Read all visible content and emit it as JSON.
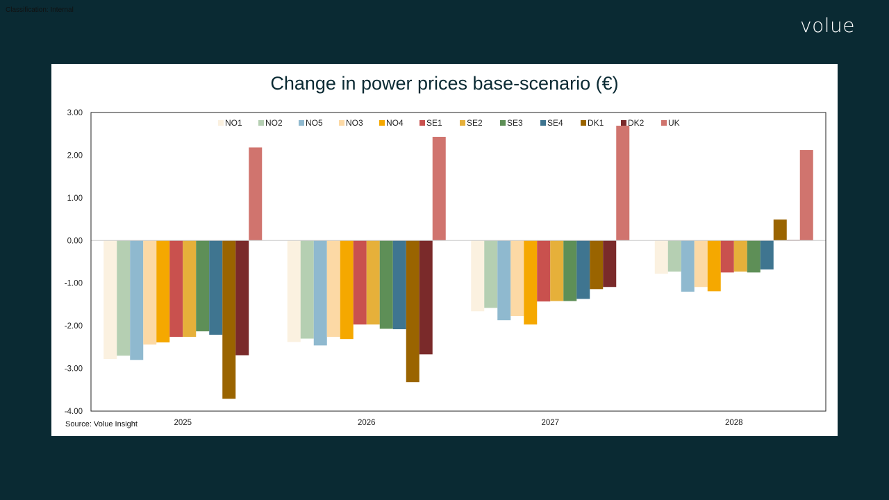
{
  "classification": "Classification: Internal",
  "logo": "volue",
  "chart_data": {
    "type": "bar",
    "title": "Change in power prices base-scenario (€)",
    "source": "Source: Volue Insight",
    "xlabel": "",
    "ylabel": "",
    "ylim": [
      -4,
      3
    ],
    "yticks": [
      3,
      2,
      1,
      0,
      -1,
      -2,
      -3,
      -4
    ],
    "ytick_labels": [
      "3.00",
      "2.00",
      "1.00",
      "0.00",
      "-1.00",
      "-2.00",
      "-3.00",
      "-4.00"
    ],
    "legend_position": "top",
    "categories": [
      "2025",
      "2026",
      "2027",
      "2028"
    ],
    "series": [
      {
        "name": "NO1",
        "color": "#fbf1e0",
        "values": [
          -2.78,
          -2.38,
          -1.66,
          -0.78
        ]
      },
      {
        "name": "NO2",
        "color": "#b5cfb2",
        "values": [
          -2.7,
          -2.3,
          -1.58,
          -0.73
        ]
      },
      {
        "name": "NO5",
        "color": "#8fb9cf",
        "values": [
          -2.8,
          -2.46,
          -1.87,
          -1.2
        ]
      },
      {
        "name": "NO3",
        "color": "#fcd9a5",
        "values": [
          -2.44,
          -2.26,
          -1.77,
          -1.09
        ]
      },
      {
        "name": "NO4",
        "color": "#f5a800",
        "values": [
          -2.39,
          -2.31,
          -1.97,
          -1.19
        ]
      },
      {
        "name": "SE1",
        "color": "#c9514e",
        "values": [
          -2.26,
          -1.97,
          -1.43,
          -0.75
        ]
      },
      {
        "name": "SE2",
        "color": "#e6b03a",
        "values": [
          -2.26,
          -1.97,
          -1.42,
          -0.73
        ]
      },
      {
        "name": "SE3",
        "color": "#5e8f57",
        "values": [
          -2.13,
          -2.07,
          -1.42,
          -0.75
        ]
      },
      {
        "name": "SE4",
        "color": "#3f7590",
        "values": [
          -2.21,
          -2.08,
          -1.37,
          -0.68
        ]
      },
      {
        "name": "DK1",
        "color": "#9a6400",
        "values": [
          -3.71,
          -3.32,
          -1.14,
          0.49
        ]
      },
      {
        "name": "DK2",
        "color": "#7a2a2a",
        "values": [
          -2.69,
          -2.67,
          -1.09,
          0.01
        ]
      },
      {
        "name": "UK",
        "color": "#d0746e",
        "values": [
          2.18,
          2.43,
          2.69,
          2.12
        ]
      }
    ]
  }
}
